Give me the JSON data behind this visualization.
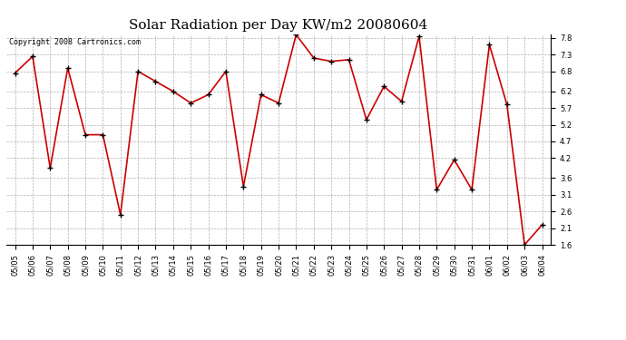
{
  "title": "Solar Radiation per Day KW/m2 20080604",
  "copyright_text": "Copyright 2008 Cartronics.com",
  "dates": [
    "05/05",
    "05/06",
    "05/07",
    "05/08",
    "05/09",
    "05/10",
    "05/11",
    "05/12",
    "05/13",
    "05/14",
    "05/15",
    "05/16",
    "05/17",
    "05/18",
    "05/19",
    "05/20",
    "05/21",
    "05/22",
    "05/23",
    "05/24",
    "05/25",
    "05/26",
    "05/27",
    "05/28",
    "05/29",
    "05/30",
    "05/31",
    "06/01",
    "06/02",
    "06/03",
    "06/04"
  ],
  "values": [
    6.75,
    7.25,
    3.9,
    6.9,
    4.9,
    4.9,
    2.5,
    6.8,
    6.5,
    6.2,
    5.85,
    6.1,
    6.8,
    3.35,
    6.1,
    5.85,
    7.9,
    7.2,
    7.1,
    7.15,
    5.35,
    6.35,
    5.9,
    7.85,
    3.25,
    4.15,
    3.25,
    7.6,
    5.8,
    1.6,
    2.2
  ],
  "line_color": "#cc0000",
  "marker_color": "#000000",
  "ylim_min": 1.6,
  "ylim_max": 7.9,
  "yticks": [
    1.6,
    2.1,
    2.6,
    3.1,
    3.6,
    4.2,
    4.7,
    5.2,
    5.7,
    6.2,
    6.8,
    7.3,
    7.8
  ],
  "bg_color": "#ffffff",
  "grid_color": "#b0b0b0",
  "title_fontsize": 11,
  "tick_fontsize": 6,
  "copyright_fontsize": 6
}
